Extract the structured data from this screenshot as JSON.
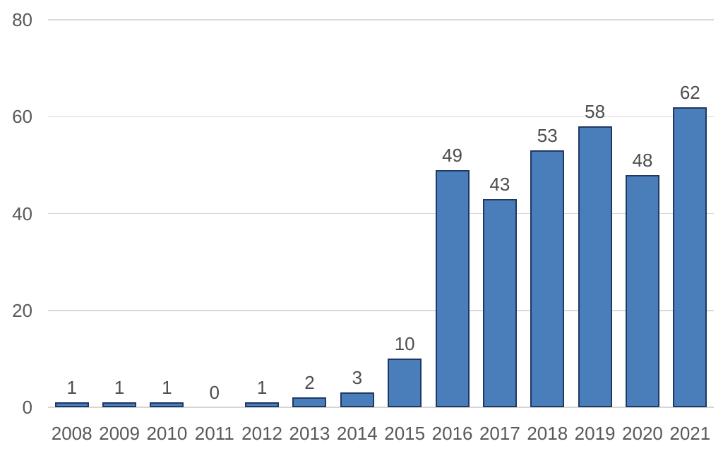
{
  "chart_data": {
    "type": "bar",
    "title": "",
    "xlabel": "",
    "ylabel": "",
    "categories": [
      "2008",
      "2009",
      "2010",
      "2011",
      "2012",
      "2013",
      "2014",
      "2015",
      "2016",
      "2017",
      "2018",
      "2019",
      "2020",
      "2021"
    ],
    "values": [
      1,
      1,
      1,
      0,
      1,
      2,
      3,
      10,
      49,
      43,
      53,
      58,
      48,
      62
    ],
    "data_labels": [
      "1",
      "1",
      "1",
      "0",
      "1",
      "2",
      "3",
      "10",
      "49",
      "43",
      "53",
      "58",
      "48",
      "62"
    ],
    "ylim": [
      0,
      80
    ],
    "yticks": [
      0,
      20,
      40,
      60,
      80
    ],
    "ytick_labels": [
      "0",
      "20",
      "40",
      "60",
      "80"
    ],
    "grid": true,
    "legend": "none",
    "colors": {
      "bar_fill": "#4a7ebb",
      "bar_border": "#1f3864",
      "gridline": "#d9d9d9",
      "axis_line": "#d6d6d6",
      "tick_label": "#595959",
      "data_label": "#4d4d4d",
      "background": "#ffffff"
    }
  }
}
